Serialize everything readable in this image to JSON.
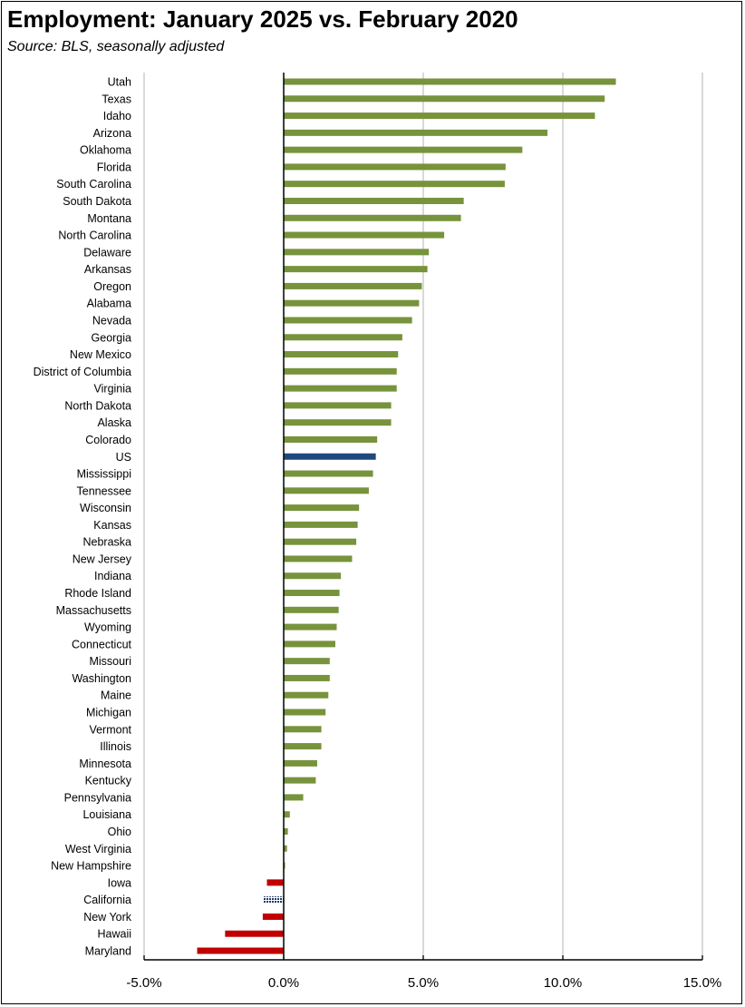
{
  "chart_data": {
    "type": "bar",
    "orientation": "horizontal",
    "title": "Employment:  January 2025 vs. February 2020",
    "subtitle": "Source:  BLS, seasonally adjusted",
    "xlim": [
      -5.0,
      15.0
    ],
    "x_ticks": [
      "-5.0%",
      "0.0%",
      "5.0%",
      "10.0%",
      "15.0%"
    ],
    "grid": "vertical",
    "legend": "none",
    "colors": {
      "positive": "#77933c",
      "us": "#1f497d",
      "negative": "#c00000",
      "california": "#44546a",
      "zero_line": "#000000",
      "grid": "#d9d9d9"
    },
    "categories": [
      "Utah",
      "Texas",
      "Idaho",
      "Arizona",
      "Oklahoma",
      "Florida",
      "South Carolina",
      "South Dakota",
      "Montana",
      "North Carolina",
      "Delaware",
      "Arkansas",
      "Oregon",
      "Alabama",
      "Nevada",
      "Georgia",
      "New Mexico",
      "District of Columbia",
      "Virginia",
      "North Dakota",
      "Alaska",
      "Colorado",
      "US",
      "Mississippi",
      "Tennessee",
      "Wisconsin",
      "Kansas",
      "Nebraska",
      "New Jersey",
      "Indiana",
      "Rhode Island",
      "Massachusetts",
      "Wyoming",
      "Connecticut",
      "Missouri",
      "Washington",
      "Maine",
      "Michigan",
      "Vermont",
      "Illinois",
      "Minnesota",
      "Kentucky",
      "Pennsylvania",
      "Louisiana",
      "Ohio",
      "West Virginia",
      "New Hampshire",
      "Iowa",
      "California",
      "New York",
      "Hawaii",
      "Maryland"
    ],
    "values": [
      11.9,
      11.5,
      11.15,
      9.45,
      8.55,
      7.95,
      7.92,
      6.45,
      6.35,
      5.75,
      5.2,
      5.15,
      4.95,
      4.85,
      4.6,
      4.25,
      4.1,
      4.05,
      4.05,
      3.85,
      3.85,
      3.35,
      3.3,
      3.2,
      3.05,
      2.7,
      2.65,
      2.6,
      2.45,
      2.05,
      2.0,
      1.97,
      1.9,
      1.85,
      1.65,
      1.65,
      1.6,
      1.5,
      1.35,
      1.35,
      1.2,
      1.15,
      0.7,
      0.22,
      0.15,
      0.12,
      0.05,
      -0.6,
      -0.72,
      -0.75,
      -2.1,
      -3.1
    ],
    "highlight": {
      "US": "us",
      "California": "california"
    }
  }
}
